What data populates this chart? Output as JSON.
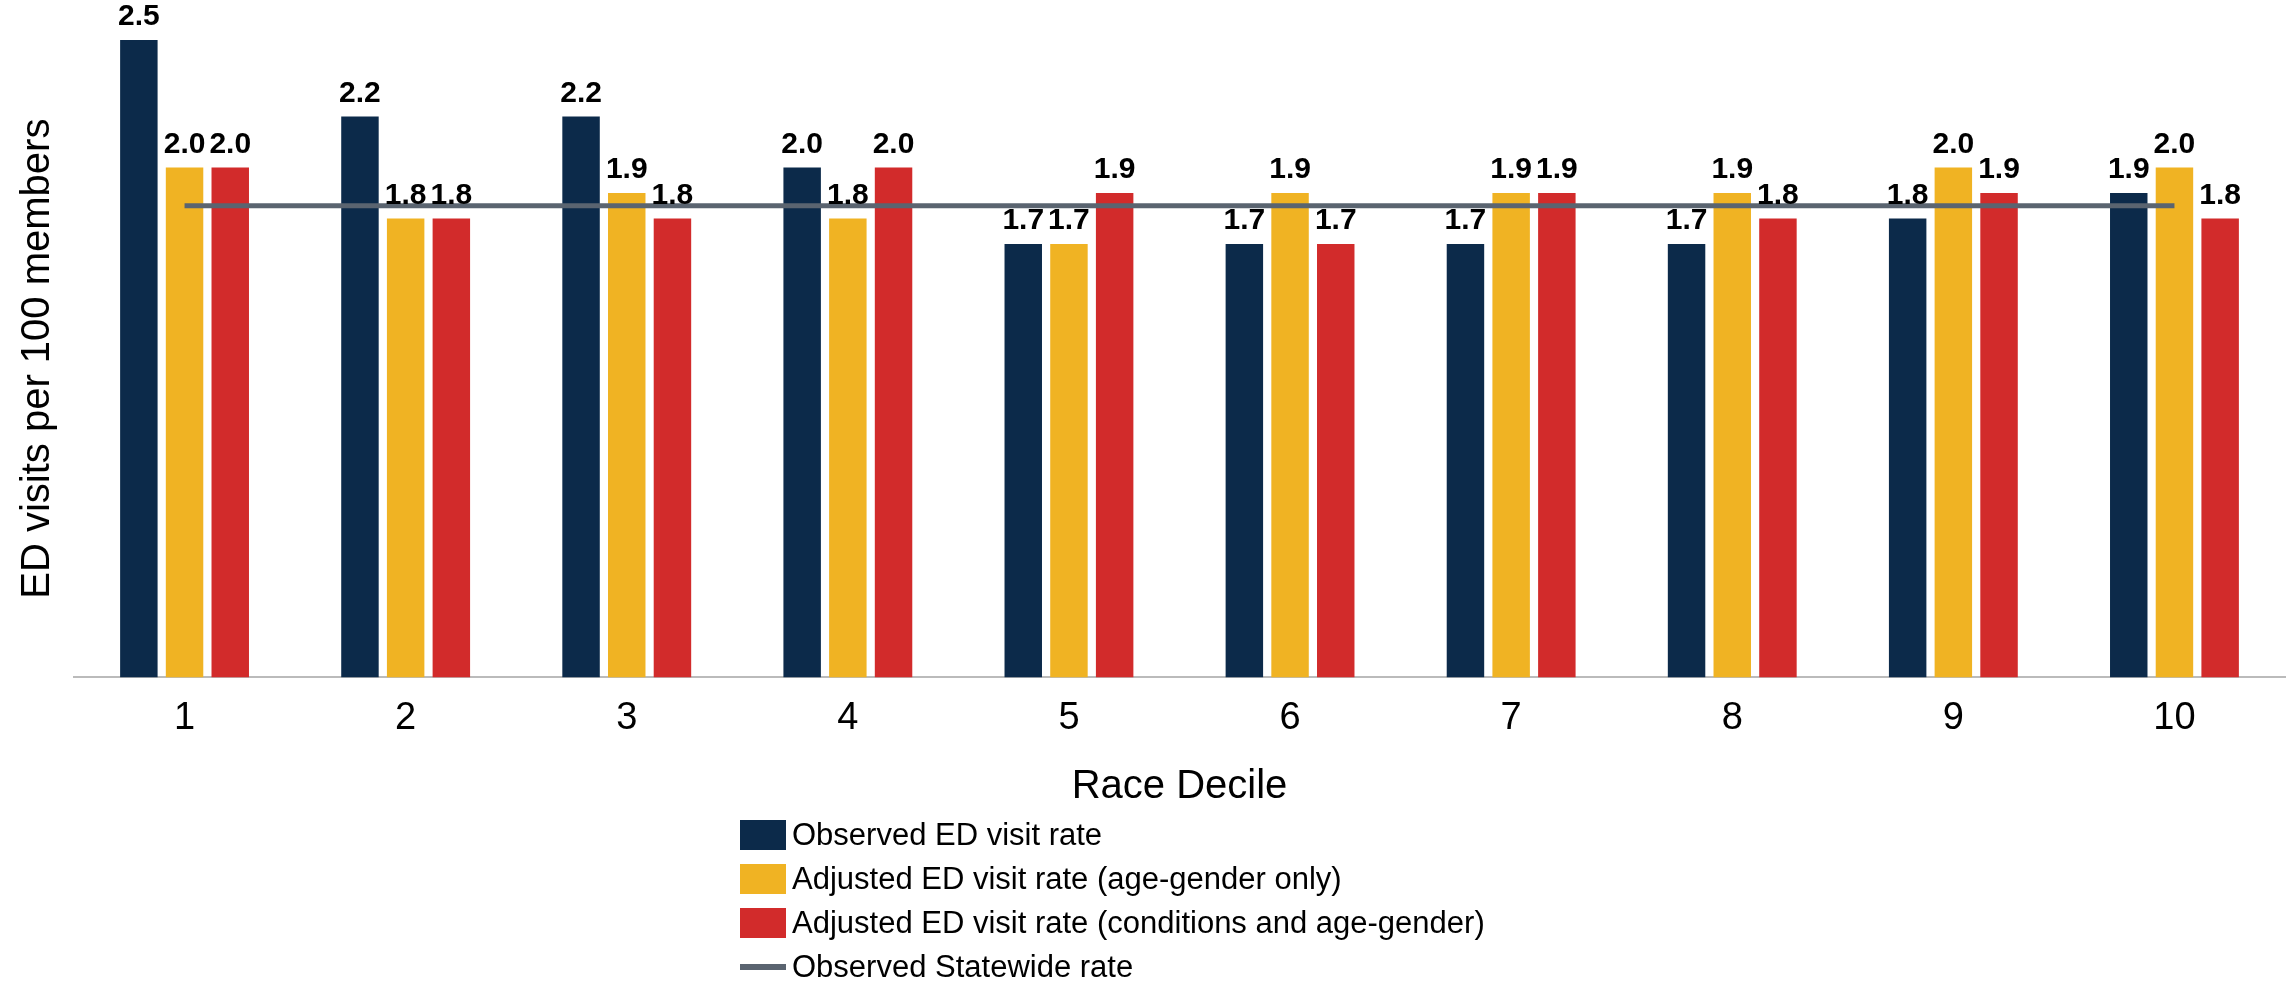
{
  "chart_data": {
    "type": "bar",
    "xlabel": "Race Decile",
    "ylabel": "ED visits per 100 members",
    "categories": [
      "1",
      "2",
      "3",
      "4",
      "5",
      "6",
      "7",
      "8",
      "9",
      "10"
    ],
    "tick_labels": "x",
    "grid": false,
    "legend": "bottom",
    "series": [
      {
        "name": "Observed ED visit rate",
        "color": "#0c2a4a",
        "values": [
          2.5,
          2.2,
          2.2,
          2.0,
          1.7,
          1.7,
          1.7,
          1.7,
          1.8,
          1.9
        ],
        "value_labels": [
          "2.5",
          "2.2",
          "2.2",
          "2.0",
          "1.7",
          "1.7",
          "1.7",
          "1.7",
          "1.8",
          "1.9"
        ]
      },
      {
        "name": "Adjusted ED visit rate (age-gender only)",
        "color": "#f0b323",
        "values": [
          2.0,
          1.8,
          1.9,
          1.8,
          1.7,
          1.9,
          1.9,
          1.9,
          2.0,
          2.0
        ],
        "value_labels": [
          "2.0",
          "1.8",
          "1.9",
          "1.8",
          "1.7",
          "1.9",
          "1.9",
          "1.9",
          "2.0",
          "2.0"
        ]
      },
      {
        "name": "Adjusted ED visit rate (conditions and age-gender)",
        "color": "#d22b2b",
        "values": [
          2.0,
          1.8,
          1.8,
          2.0,
          1.9,
          1.7,
          1.9,
          1.8,
          1.9,
          1.8
        ],
        "value_labels": [
          "2.0",
          "1.8",
          "1.8",
          "2.0",
          "1.9",
          "1.7",
          "1.9",
          "1.8",
          "1.9",
          "1.8"
        ]
      },
      {
        "name": "Observed Statewide rate",
        "type": "line",
        "color": "#5a6470",
        "values": [
          1.85,
          1.85,
          1.85,
          1.85,
          1.85,
          1.85,
          1.85,
          1.85,
          1.85,
          1.85
        ]
      }
    ]
  }
}
